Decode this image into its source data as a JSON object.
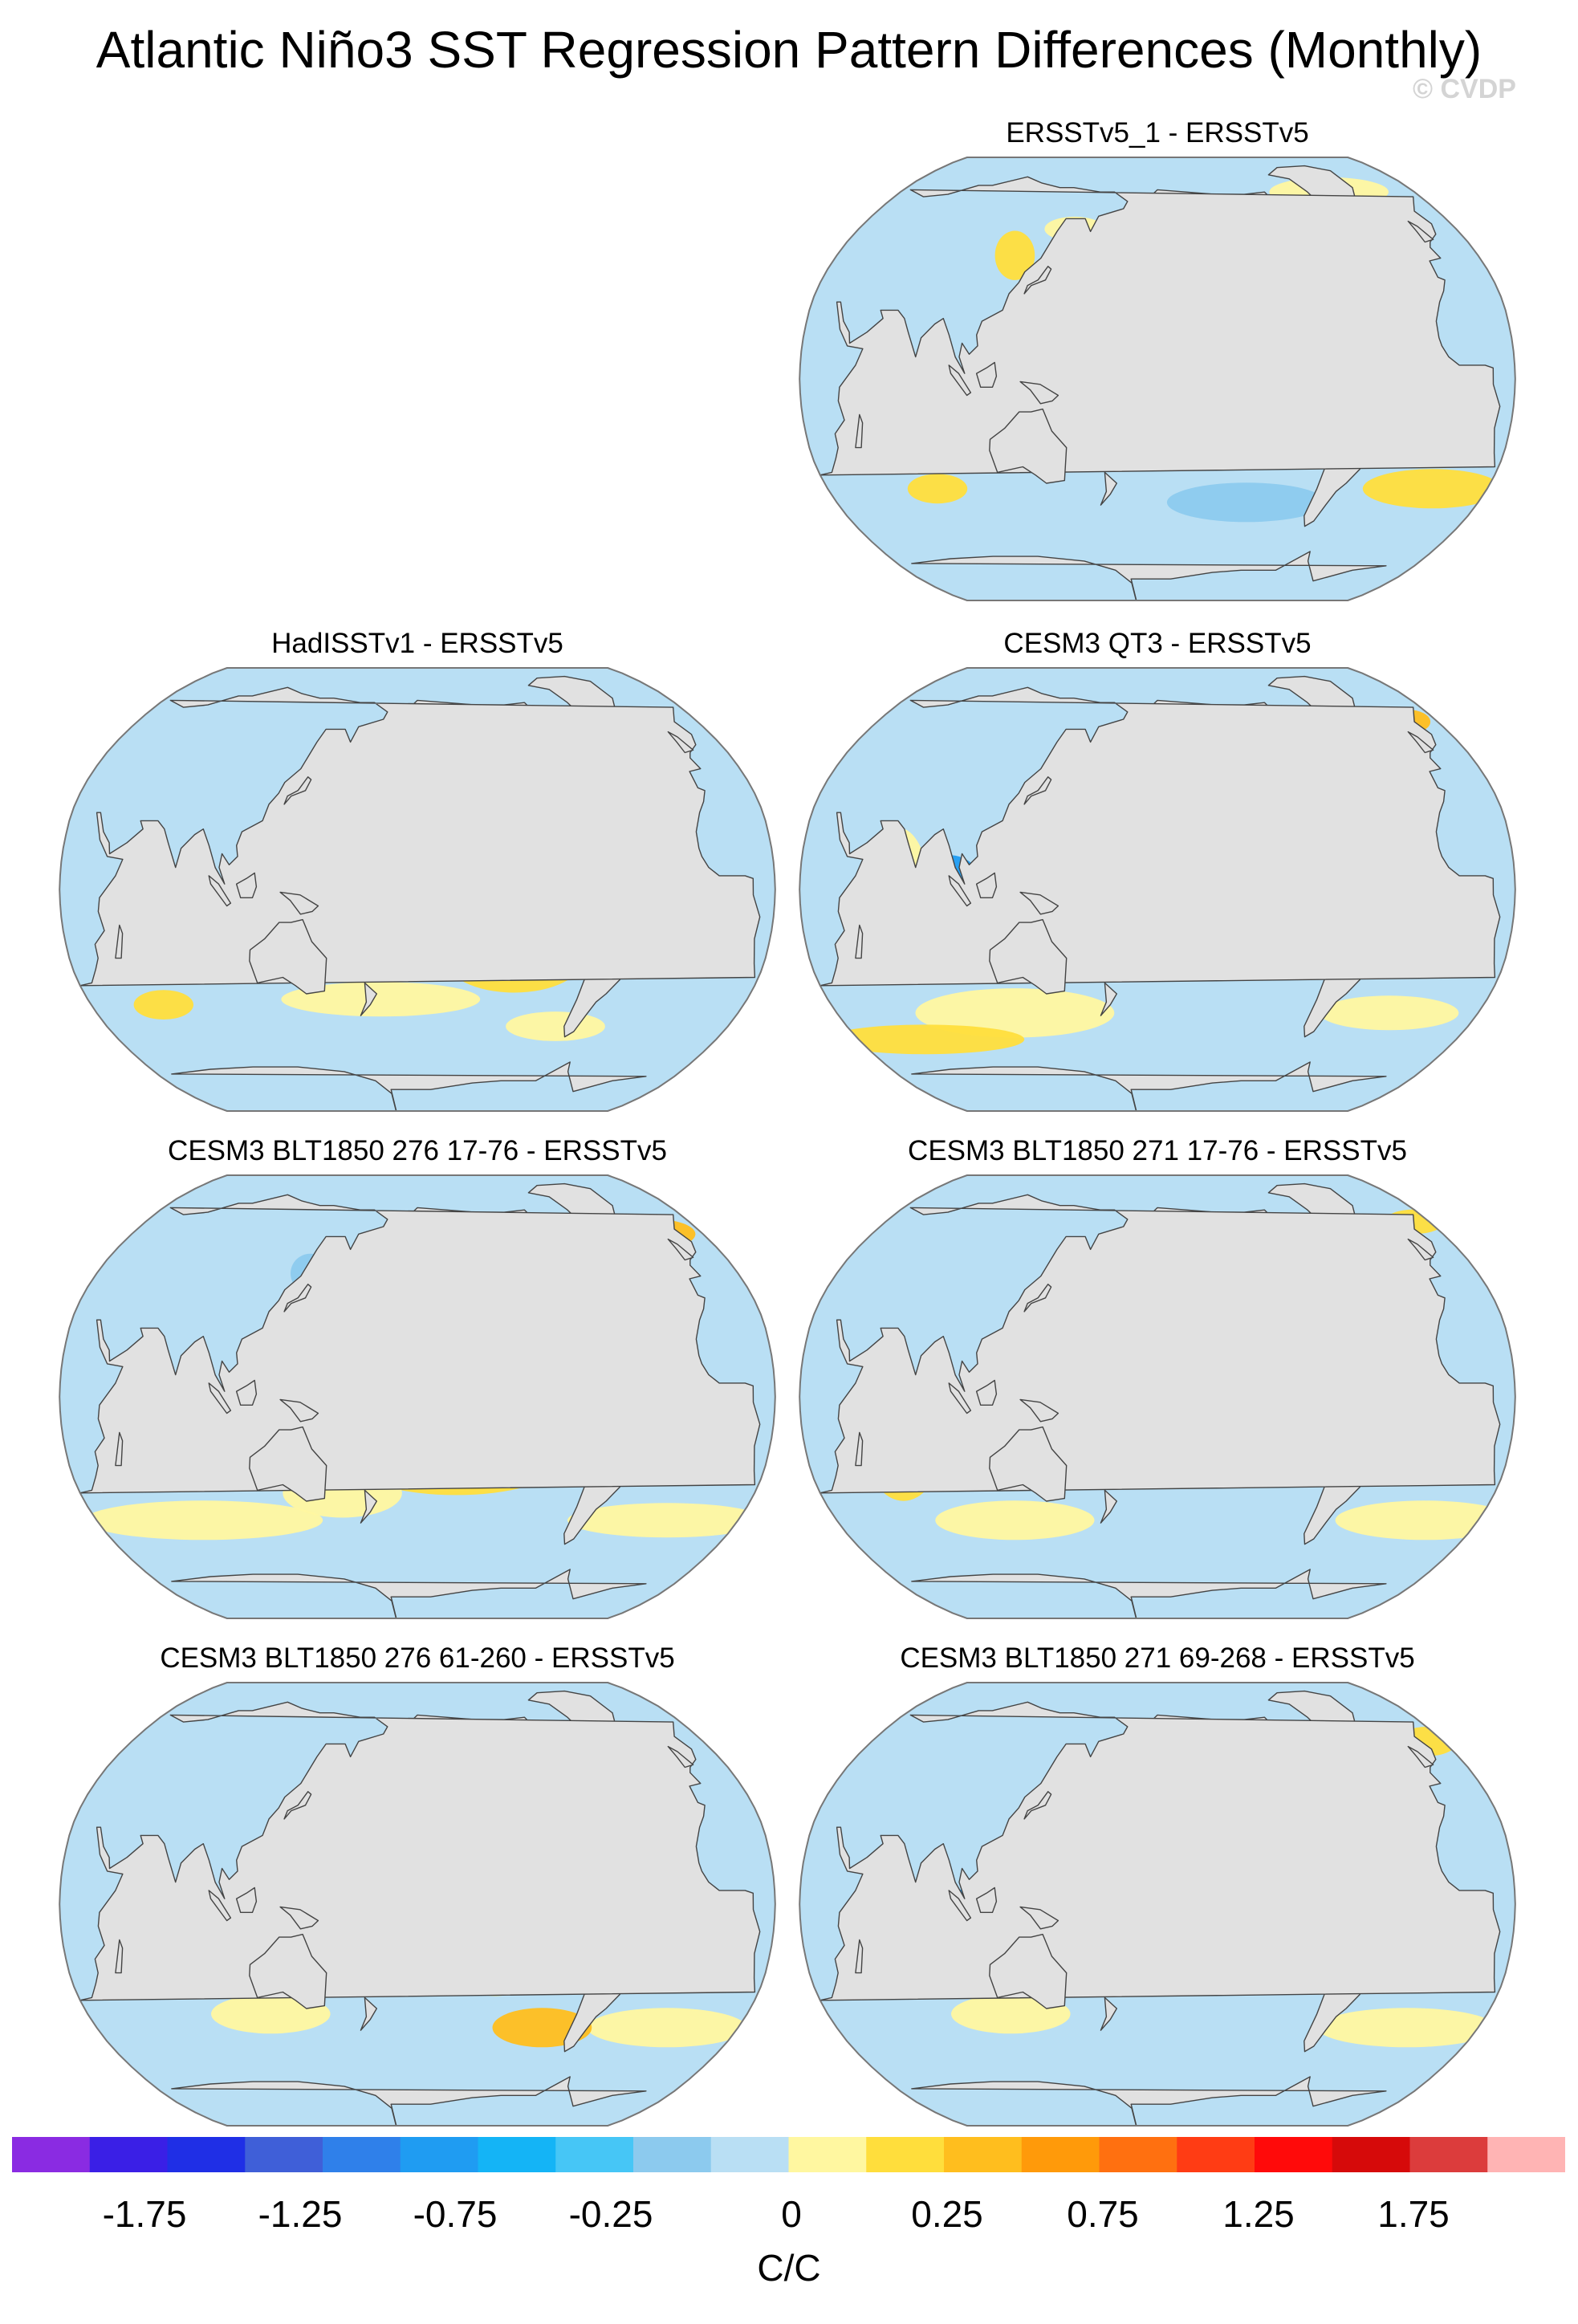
{
  "title": "Atlantic Niño3 SST Regression Pattern Differences (Monthly)",
  "watermark": "© CVDP",
  "panels": [
    {
      "title": "ERSSTv5_1 - ERSSTv5"
    },
    {
      "title": "HadISSTv1 - ERSSTv5"
    },
    {
      "title": "CESM3 QT3 - ERSSTv5"
    },
    {
      "title": "CESM3 BLT1850 276 17-76 - ERSSTv5"
    },
    {
      "title": "CESM3 BLT1850 271 17-76 - ERSSTv5"
    },
    {
      "title": "CESM3 BLT1850 276 61-260 - ERSSTv5"
    },
    {
      "title": "CESM3 BLT1850 271 69-268 - ERSSTv5"
    }
  ],
  "colorbar": {
    "units": "C/C",
    "levels": [
      -2.0,
      -1.75,
      -1.5,
      -1.25,
      -1.0,
      -0.75,
      -0.5,
      -0.25,
      0,
      0.25,
      0.5,
      0.75,
      1.0,
      1.25,
      1.5,
      1.75,
      2.0
    ],
    "tick_labels": [
      "-1.75",
      "-1.25",
      "-0.75",
      "-0.25",
      "0",
      "0.25",
      "0.75",
      "1.25",
      "1.75"
    ],
    "colors": [
      "#8a2be2",
      "#3a1fe6",
      "#1f2fe6",
      "#3f5fd8",
      "#2f80ea",
      "#1f9cf2",
      "#14b4f6",
      "#46c6f6",
      "#8ccaee",
      "#b9dff4",
      "#fff7a0",
      "#ffde3c",
      "#ffbe1e",
      "#ff9a0a",
      "#ff7010",
      "#ff3c14",
      "#ff0a0a",
      "#d60a0a",
      "#dc3c3c",
      "#ffb4b4"
    ]
  },
  "map_colors": {
    "land": "#e1e1e1",
    "coast": "#444444",
    "frame": "#777777",
    "neutral_cool": "#b9dff4",
    "cool": "#8ccaee",
    "cool_strong": "#46c6f6",
    "cool_deep": "#1f9cf2",
    "warm": "#fff7a0",
    "warm_strong": "#ffde3c",
    "warm_deep": "#ffbe1e"
  }
}
